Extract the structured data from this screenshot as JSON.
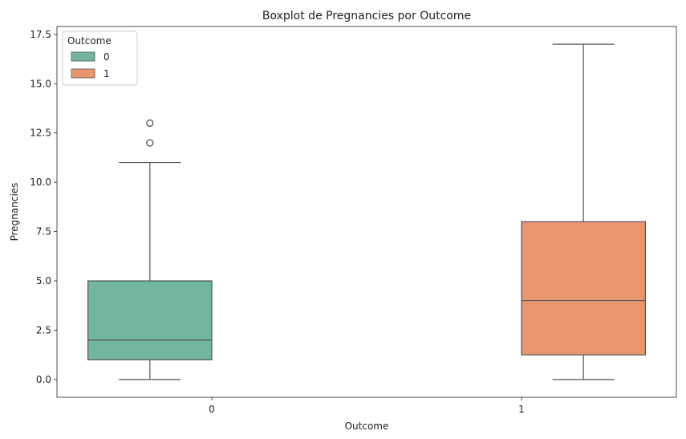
{
  "chart_data": {
    "type": "boxplot",
    "title": "Boxplot de Pregnancies por Outcome",
    "xlabel": "Outcome",
    "ylabel": "Pregnancies",
    "ylim": [
      -0.9,
      17.9
    ],
    "yticks": [
      0.0,
      2.5,
      5.0,
      7.5,
      10.0,
      12.5,
      15.0,
      17.5
    ],
    "ytick_labels": [
      "0.0",
      "2.5",
      "5.0",
      "7.5",
      "10.0",
      "12.5",
      "15.0",
      "17.5"
    ],
    "categories": [
      "0",
      "1"
    ],
    "legend": {
      "title": "Outcome",
      "position": "top-left",
      "entries": [
        {
          "label": "0",
          "color": "#72b5a0"
        },
        {
          "label": "1",
          "color": "#e9956f"
        }
      ]
    },
    "series": [
      {
        "name": "0",
        "category": "0",
        "color": "#72b5a0",
        "whisker_low": 0,
        "q1": 1,
        "median": 2,
        "q3": 5,
        "whisker_high": 11,
        "outliers": [
          12,
          13
        ]
      },
      {
        "name": "1",
        "category": "1",
        "color": "#e9956f",
        "whisker_low": 0,
        "q1": 1.25,
        "median": 4,
        "q3": 8,
        "whisker_high": 17,
        "outliers": []
      }
    ]
  }
}
